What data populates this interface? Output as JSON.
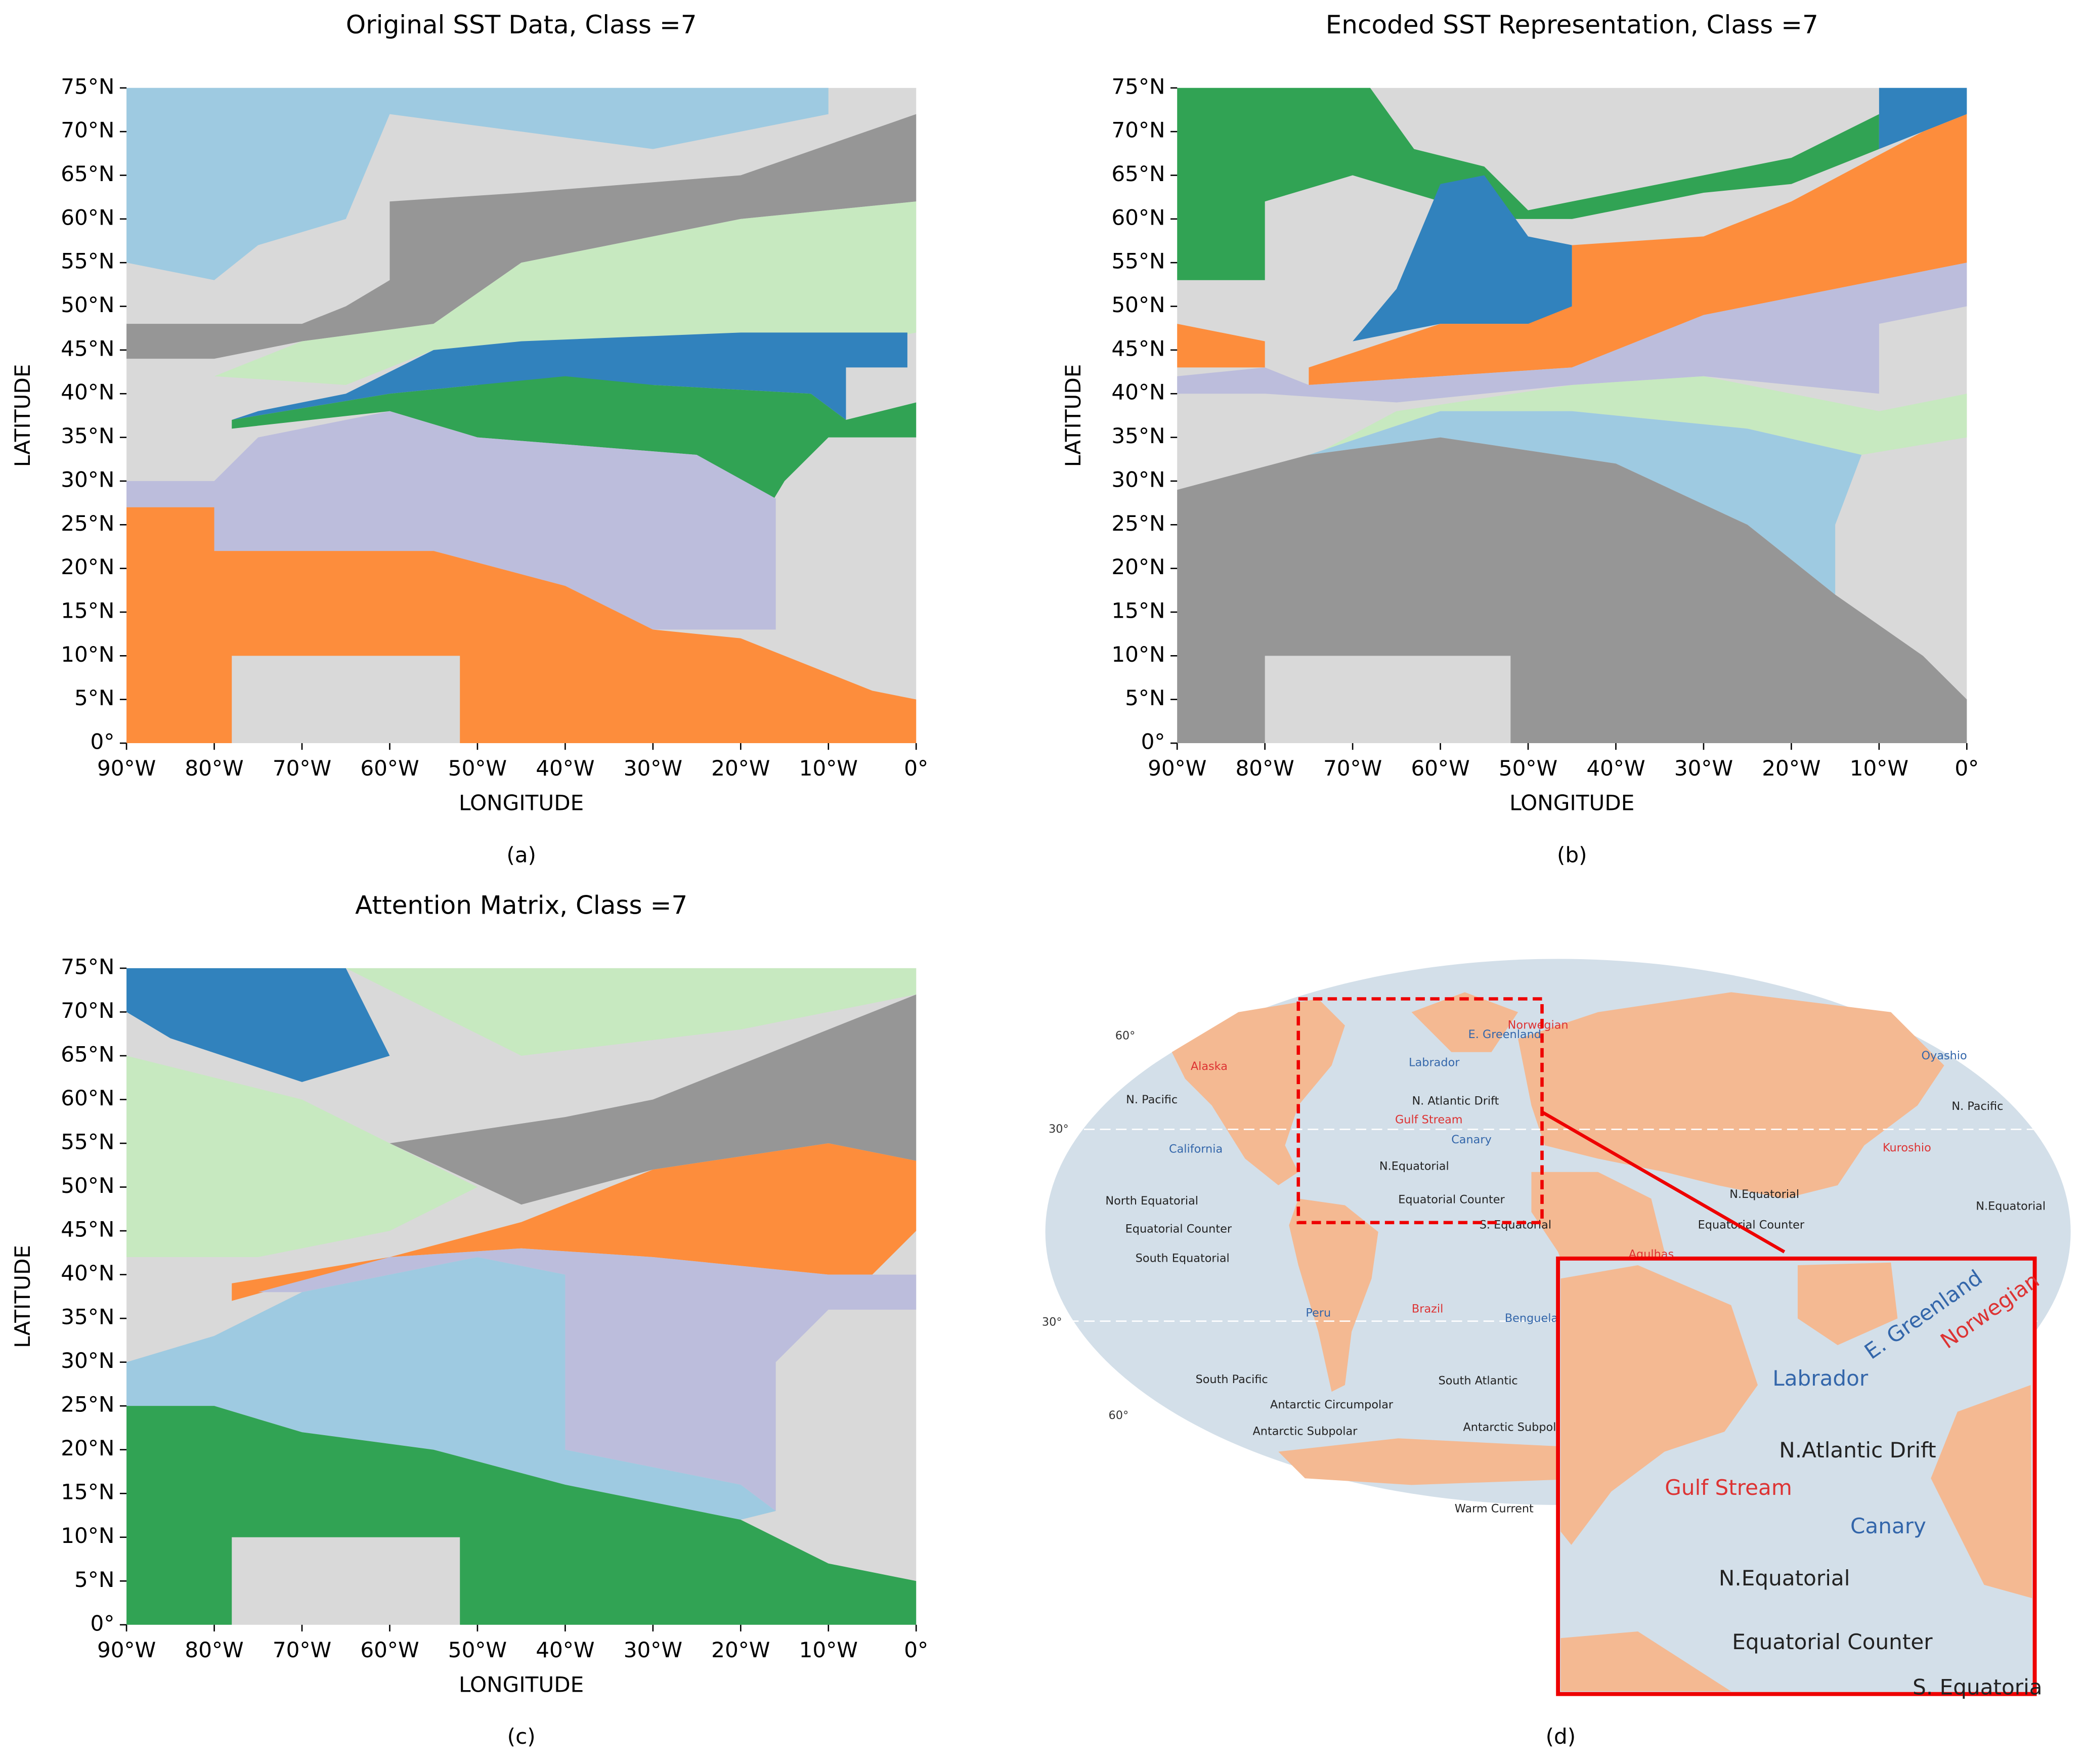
{
  "chart_data": [
    {
      "type": "heatmap",
      "title": "Original SST Data, Class =7",
      "xlabel": "LONGITUDE",
      "ylabel": "LATITUDE",
      "caption": "(a)",
      "xlim": [
        -90,
        0
      ],
      "ylim": [
        0,
        75
      ],
      "xticks": [
        {
          "value": -90,
          "label": "90°W"
        },
        {
          "value": -80,
          "label": "80°W"
        },
        {
          "value": -70,
          "label": "70°W"
        },
        {
          "value": -60,
          "label": "60°W"
        },
        {
          "value": -50,
          "label": "50°W"
        },
        {
          "value": -40,
          "label": "40°W"
        },
        {
          "value": -30,
          "label": "30°W"
        },
        {
          "value": -20,
          "label": "20°W"
        },
        {
          "value": -10,
          "label": "10°W"
        },
        {
          "value": 0,
          "label": "0°"
        }
      ],
      "yticks": [
        {
          "value": 0,
          "label": "0°"
        },
        {
          "value": 5,
          "label": "5°N"
        },
        {
          "value": 10,
          "label": "10°N"
        },
        {
          "value": 15,
          "label": "15°N"
        },
        {
          "value": 20,
          "label": "20°N"
        },
        {
          "value": 25,
          "label": "25°N"
        },
        {
          "value": 30,
          "label": "30°N"
        },
        {
          "value": 35,
          "label": "35°N"
        },
        {
          "value": 40,
          "label": "40°N"
        },
        {
          "value": 45,
          "label": "45°N"
        },
        {
          "value": 50,
          "label": "50°N"
        },
        {
          "value": 55,
          "label": "55°N"
        },
        {
          "value": 60,
          "label": "60°N"
        },
        {
          "value": 65,
          "label": "65°N"
        },
        {
          "value": 70,
          "label": "70°N"
        },
        {
          "value": 75,
          "label": "75°N"
        }
      ]
    },
    {
      "type": "heatmap",
      "title": "Encoded SST Representation, Class =7",
      "xlabel": "LONGITUDE",
      "ylabel": "LATITUDE",
      "caption": "(b)",
      "xlim": [
        -90,
        0
      ],
      "ylim": [
        0,
        75
      ],
      "xticks": [
        {
          "value": -90,
          "label": "90°W"
        },
        {
          "value": -80,
          "label": "80°W"
        },
        {
          "value": -70,
          "label": "70°W"
        },
        {
          "value": -60,
          "label": "60°W"
        },
        {
          "value": -50,
          "label": "50°W"
        },
        {
          "value": -40,
          "label": "40°W"
        },
        {
          "value": -30,
          "label": "30°W"
        },
        {
          "value": -20,
          "label": "20°W"
        },
        {
          "value": -10,
          "label": "10°W"
        },
        {
          "value": 0,
          "label": "0°"
        }
      ],
      "yticks": [
        {
          "value": 0,
          "label": "0°"
        },
        {
          "value": 5,
          "label": "5°N"
        },
        {
          "value": 10,
          "label": "10°N"
        },
        {
          "value": 15,
          "label": "15°N"
        },
        {
          "value": 20,
          "label": "20°N"
        },
        {
          "value": 25,
          "label": "25°N"
        },
        {
          "value": 30,
          "label": "30°N"
        },
        {
          "value": 35,
          "label": "35°N"
        },
        {
          "value": 40,
          "label": "40°N"
        },
        {
          "value": 45,
          "label": "45°N"
        },
        {
          "value": 50,
          "label": "50°N"
        },
        {
          "value": 55,
          "label": "55°N"
        },
        {
          "value": 60,
          "label": "60°N"
        },
        {
          "value": 65,
          "label": "65°N"
        },
        {
          "value": 70,
          "label": "70°N"
        },
        {
          "value": 75,
          "label": "75°N"
        }
      ]
    },
    {
      "type": "heatmap",
      "title": "Attention Matrix, Class =7",
      "xlabel": "LONGITUDE",
      "ylabel": "LATITUDE",
      "caption": "(c)",
      "xlim": [
        -90,
        0
      ],
      "ylim": [
        0,
        75
      ],
      "xticks": [
        {
          "value": -90,
          "label": "90°W"
        },
        {
          "value": -80,
          "label": "80°W"
        },
        {
          "value": -70,
          "label": "70°W"
        },
        {
          "value": -60,
          "label": "60°W"
        },
        {
          "value": -50,
          "label": "50°W"
        },
        {
          "value": -40,
          "label": "40°W"
        },
        {
          "value": -30,
          "label": "30°W"
        },
        {
          "value": -20,
          "label": "20°W"
        },
        {
          "value": -10,
          "label": "10°W"
        },
        {
          "value": 0,
          "label": "0°"
        }
      ],
      "yticks": [
        {
          "value": 0,
          "label": "0°"
        },
        {
          "value": 5,
          "label": "5°N"
        },
        {
          "value": 10,
          "label": "10°N"
        },
        {
          "value": 15,
          "label": "15°N"
        },
        {
          "value": 20,
          "label": "20°N"
        },
        {
          "value": 25,
          "label": "25°N"
        },
        {
          "value": 30,
          "label": "30°N"
        },
        {
          "value": 35,
          "label": "35°N"
        },
        {
          "value": 40,
          "label": "40°N"
        },
        {
          "value": 45,
          "label": "45°N"
        },
        {
          "value": 50,
          "label": "50°N"
        },
        {
          "value": 55,
          "label": "55°N"
        },
        {
          "value": 60,
          "label": "60°N"
        },
        {
          "value": 65,
          "label": "65°N"
        },
        {
          "value": 70,
          "label": "70°N"
        },
        {
          "value": 75,
          "label": "75°N"
        }
      ]
    }
  ],
  "map_panel": {
    "caption": "(d)",
    "map_labels": [
      "60°",
      "30°",
      "30°",
      "60°",
      "Alaska",
      "N. Pacific",
      "California",
      "Labrador",
      "E. Greenland",
      "Norwegian",
      "Gulf Stream",
      "N. Atlantic Drift",
      "Canary",
      "N.Equatorial",
      "Equatorial Counter",
      "S. Equatorial",
      "North Equatorial",
      "Equatorial Counter",
      "South Equatorial",
      "Peru",
      "Brazil",
      "Benguela",
      "South Pacific",
      "South Atlantic",
      "Antarctic Circumpolar",
      "Antarctic Subpolar",
      "Antarctic Subpolar",
      "Oyashio",
      "N. Pacific",
      "Kuroshio",
      "N.Equatorial",
      "Equatorial Counter",
      "Agulhas",
      "N.Equatorial",
      "Warm Current"
    ],
    "inset_labels": [
      "Labrador",
      "E. Greenland",
      "Norwegian",
      "N.Atlantic Drift",
      "Gulf Stream",
      "Canary",
      "N.Equatorial",
      "Equatorial Counter",
      "S. Equatoria"
    ]
  }
}
